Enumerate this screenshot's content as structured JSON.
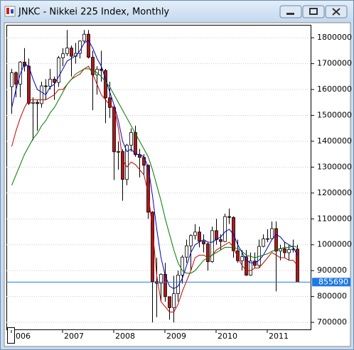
{
  "chart_data": {
    "type": "candlestick",
    "title": "JNKC - Nikkei 225 Index, Monthly",
    "categories": [
      "006",
      null,
      null,
      null,
      null,
      null,
      null,
      null,
      null,
      null,
      null,
      null,
      "2007",
      null,
      null,
      null,
      null,
      null,
      null,
      null,
      null,
      null,
      null,
      null,
      "2008",
      null,
      null,
      null,
      null,
      null,
      null,
      null,
      null,
      null,
      null,
      null,
      "2009",
      null,
      null,
      null,
      null,
      null,
      null,
      null,
      null,
      null,
      null,
      null,
      "2010",
      null,
      null,
      null,
      null,
      null,
      null,
      null,
      null,
      null,
      null,
      null,
      "2011",
      null,
      null,
      null,
      null,
      null,
      null,
      null
    ],
    "open": [
      1611100,
      1665000,
      1620500,
      1705900,
      1690600,
      1546700,
      1550500,
      1545600,
      1614000,
      1612700,
      1639900,
      1627400,
      1722500,
      1738300,
      1760400,
      1728700,
      1740000,
      1787500,
      1813800,
      1724800,
      1656900,
      1678500,
      1673700,
      1568000,
      1530700,
      1359200,
      1360300,
      1252500,
      1384900,
      1433800,
      1348100,
      1337600,
      1307200,
      1125900,
      857600,
      851200,
      885900,
      799400,
      756800,
      810900,
      882800,
      952200,
      995800,
      1035600,
      1049200,
      1013300,
      1003400,
      934500,
      1054600,
      1019800,
      1012600,
      1108900,
      1105700,
      976800,
      938200,
      953700,
      882400,
      936900,
      920200,
      993700,
      1022800,
      1023700,
      1062400,
      975500,
      984900,
      969300,
      981600,
      983300
    ],
    "high": [
      1680000,
      1670000,
      1710000,
      1760000,
      1720000,
      1570000,
      1560000,
      1630000,
      1640000,
      1680000,
      1650000,
      1730000,
      1760000,
      1830000,
      1770000,
      1780000,
      1790000,
      1830000,
      1830000,
      1750000,
      1690000,
      1750000,
      1680000,
      1630000,
      1540000,
      1400000,
      1370000,
      1390000,
      1450000,
      1460000,
      1370000,
      1350000,
      1310000,
      1130000,
      950000,
      890000,
      930000,
      800000,
      880000,
      900000,
      960000,
      1020000,
      1040000,
      1080000,
      1070000,
      1040000,
      1010000,
      1070000,
      1100000,
      1040000,
      1120000,
      1140000,
      1110000,
      1020000,
      980000,
      980000,
      970000,
      970000,
      1020000,
      1040000,
      1060000,
      1090000,
      1090000,
      1000000,
      1010000,
      1000000,
      1020000,
      1000000
    ],
    "low": [
      1505900,
      1570000,
      1570000,
      1670000,
      1540000,
      1404500,
      1440000,
      1530000,
      1560000,
      1600000,
      1560000,
      1610000,
      1690000,
      1730000,
      1650000,
      1700000,
      1720000,
      1780000,
      1720000,
      1520000,
      1580000,
      1630000,
      1470000,
      1490000,
      1250000,
      1290000,
      1170000,
      1230000,
      1360000,
      1340000,
      1260000,
      1270000,
      1100000,
      700000,
      720000,
      780000,
      780000,
      710000,
      700000,
      780000,
      850000,
      930000,
      900000,
      1020000,
      990000,
      970000,
      900000,
      930000,
      1000000,
      980000,
      1010000,
      1080000,
      950000,
      930000,
      900000,
      880000,
      880000,
      910000,
      910000,
      990000,
      1010000,
      1020000,
      820000,
      940000,
      950000,
      940000,
      970000,
      860000
    ],
    "close": [
      1665000,
      1620500,
      1705900,
      1690600,
      1546700,
      1550500,
      1545600,
      1614000,
      1612700,
      1639900,
      1627400,
      1722500,
      1738300,
      1760400,
      1728700,
      1740000,
      1787500,
      1813800,
      1724800,
      1656900,
      1678500,
      1673700,
      1568000,
      1530700,
      1359200,
      1360300,
      1252500,
      1384900,
      1433800,
      1348100,
      1337600,
      1307200,
      1125900,
      857600,
      851200,
      885900,
      799400,
      756800,
      810900,
      882800,
      952200,
      995800,
      1035600,
      1049200,
      1013300,
      1003400,
      934500,
      1054600,
      1019800,
      1012600,
      1108900,
      1105700,
      976800,
      938200,
      953700,
      882400,
      936900,
      920200,
      993700,
      1022800,
      1023700,
      1062400,
      975500,
      984900,
      969300,
      981600,
      983300,
      855690
    ],
    "up_color": "#ffffff",
    "down_color": "#b01818",
    "series": [
      {
        "color": "#0000c8",
        "values": [
          1530000,
          1600000,
          1660000,
          1700000,
          1690000,
          1640000,
          1600000,
          1590000,
          1580000,
          1610000,
          1620000,
          1650000,
          1680000,
          1710000,
          1720000,
          1730000,
          1750000,
          1780000,
          1790000,
          1760000,
          1720000,
          1690000,
          1640000,
          1590000,
          1540000,
          1480000,
          1400000,
          1360000,
          1370000,
          1350000,
          1350000,
          1340000,
          1300000,
          1190000,
          1060000,
          950000,
          880000,
          840000,
          830000,
          840000,
          870000,
          920000,
          970000,
          1000000,
          1010000,
          1020000,
          1010000,
          1010000,
          1020000,
          1030000,
          1050000,
          1060000,
          1040000,
          1000000,
          970000,
          940000,
          930000,
          930000,
          940000,
          960000,
          990000,
          1020000,
          1040000,
          1030000,
          1010000,
          1000000,
          990000,
          960000
        ]
      },
      {
        "color": "#c80000",
        "values": [
          1380000,
          1440000,
          1490000,
          1530000,
          1560000,
          1560000,
          1560000,
          1560000,
          1560000,
          1570000,
          1580000,
          1600000,
          1600000,
          1620000,
          1640000,
          1650000,
          1660000,
          1680000,
          1690000,
          1660000,
          1620000,
          1580000,
          1560000,
          1540000,
          1530000,
          1450000,
          1330000,
          1300000,
          1320000,
          1310000,
          1290000,
          1270000,
          1200000,
          1060000,
          880000,
          780000,
          760000,
          740000,
          740000,
          770000,
          820000,
          860000,
          900000,
          950000,
          960000,
          960000,
          950000,
          960000,
          980000,
          990000,
          1000000,
          1010000,
          990000,
          950000,
          920000,
          900000,
          900000,
          910000,
          910000,
          930000,
          950000,
          970000,
          960000,
          950000,
          950000,
          940000,
          940000,
          920000
        ]
      },
      {
        "color": "#007800",
        "values": [
          1230000,
          1270000,
          1310000,
          1350000,
          1380000,
          1410000,
          1430000,
          1460000,
          1480000,
          1510000,
          1530000,
          1560000,
          1590000,
          1620000,
          1640000,
          1660000,
          1670000,
          1680000,
          1680000,
          1675000,
          1665000,
          1650000,
          1630000,
          1610000,
          1580000,
          1550000,
          1520000,
          1490000,
          1460000,
          1430000,
          1400000,
          1370000,
          1340000,
          1290000,
          1230000,
          1170000,
          1100000,
          1040000,
          980000,
          930000,
          900000,
          890000,
          890000,
          900000,
          920000,
          940000,
          950000,
          960000,
          970000,
          980000,
          990000,
          990000,
          990000,
          985000,
          975000,
          960000,
          955000,
          950000,
          955000,
          960000,
          965000,
          975000,
          980000,
          985000,
          990000,
          990000,
          995000,
          990000
        ]
      }
    ],
    "ylim": [
      670000,
      1850000
    ],
    "yticks": [
      700000,
      800000,
      900000,
      1000000,
      1100000,
      1200000,
      1300000,
      1400000,
      1500000,
      1600000,
      1700000,
      1800000
    ],
    "grid": true,
    "price_line_color": "#1e78e6"
  }
}
